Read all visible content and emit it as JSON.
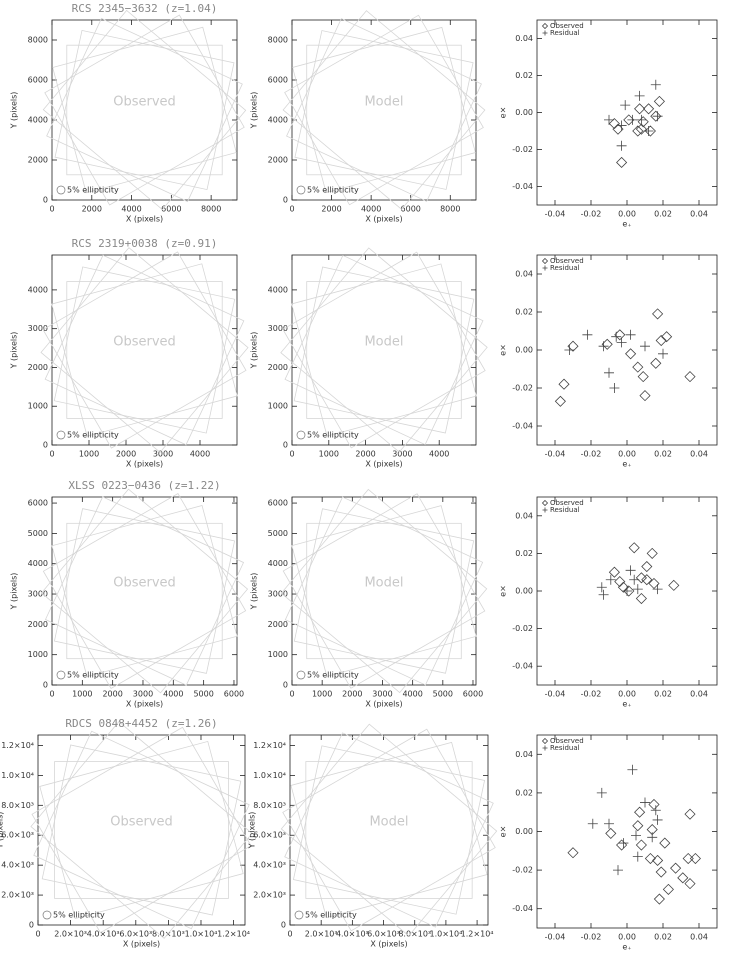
{
  "chart_data": [
    {
      "type": "whisker",
      "title": "RCS 2345−3632 (z=1.04)",
      "annotation": "Observed",
      "legend_label": "5% ellipticity",
      "x_label": "X (pixels)",
      "y_label": "Y (pixels)",
      "xlim": [
        0,
        9300
      ],
      "ylim": [
        0,
        9000
      ],
      "xticks": [
        0,
        2000,
        4000,
        6000,
        8000
      ],
      "yticks": [
        0,
        2000,
        4000,
        6000,
        8000
      ]
    },
    {
      "type": "whisker",
      "annotation": "Model",
      "legend_label": "5% ellipticity",
      "x_label": "X (pixels)",
      "y_label": "Y (pixels)",
      "xlim": [
        0,
        9300
      ],
      "ylim": [
        0,
        9000
      ],
      "xticks": [
        0,
        2000,
        4000,
        6000,
        8000
      ],
      "yticks": [
        0,
        2000,
        4000,
        6000,
        8000
      ]
    },
    {
      "type": "scatter",
      "x_label": "e₊",
      "y_label": "e×",
      "legend": "upper left",
      "xlim": [
        -0.05,
        0.05
      ],
      "ylim": [
        -0.05,
        0.05
      ],
      "xticks": [
        -0.04,
        -0.02,
        {
          "value": 0,
          "label": "0.00"
        },
        0.02,
        0.04
      ],
      "yticks": [
        -0.04,
        -0.02,
        {
          "value": 0,
          "label": "0.00"
        },
        0.02,
        0.04
      ],
      "series": [
        {
          "name": "Observed",
          "marker": "diamond",
          "x": [
            -0.007,
            -0.005,
            -0.003,
            0.001,
            0.006,
            0.008,
            0.009,
            0.013,
            0.016,
            0.018,
            0.007,
            0.012
          ],
          "values": [
            -0.006,
            -0.009,
            -0.027,
            -0.004,
            -0.01,
            -0.009,
            -0.005,
            -0.01,
            -0.002,
            0.006,
            0.002,
            0.002
          ]
        },
        {
          "name": "Residual",
          "marker": "cross",
          "x": [
            -0.01,
            -0.003,
            -0.001,
            0.003,
            0.007,
            0.008,
            -0.003,
            0.016,
            0.017,
            0.012
          ],
          "values": [
            -0.004,
            -0.007,
            0.004,
            -0.004,
            0.009,
            -0.004,
            -0.018,
            0.015,
            -0.002,
            -0.01
          ]
        }
      ]
    },
    {
      "type": "whisker",
      "title": "RCS 2319+0038 (z=0.91)",
      "annotation": "Observed",
      "legend_label": "5% ellipticity",
      "x_label": "X (pixels)",
      "y_label": "Y (pixels)",
      "xlim": [
        0,
        5000
      ],
      "ylim": [
        0,
        4900
      ],
      "xticks": [
        0,
        1000,
        2000,
        3000,
        4000
      ],
      "yticks": [
        0,
        1000,
        2000,
        3000,
        4000
      ]
    },
    {
      "type": "whisker",
      "annotation": "Model",
      "legend_label": "5% ellipticity",
      "x_label": "X (pixels)",
      "y_label": "Y (pixels)",
      "xlim": [
        0,
        5000
      ],
      "ylim": [
        0,
        4900
      ],
      "xticks": [
        0,
        1000,
        2000,
        3000,
        4000
      ],
      "yticks": [
        0,
        1000,
        2000,
        3000,
        4000
      ]
    },
    {
      "type": "scatter",
      "x_label": "e₊",
      "y_label": "e×",
      "legend": "upper left",
      "xlim": [
        -0.05,
        0.05
      ],
      "ylim": [
        -0.05,
        0.05
      ],
      "xticks": [
        -0.04,
        -0.02,
        {
          "value": 0,
          "label": "0.00"
        },
        0.02,
        0.04
      ],
      "yticks": [
        -0.04,
        -0.02,
        {
          "value": 0,
          "label": "0.00"
        },
        0.02,
        0.04
      ],
      "series": [
        {
          "name": "Observed",
          "marker": "diamond",
          "x": [
            -0.03,
            -0.035,
            -0.037,
            -0.011,
            -0.004,
            0.002,
            0.006,
            0.009,
            0.01,
            0.017,
            0.019,
            0.022,
            0.016,
            0.035
          ],
          "values": [
            0.002,
            -0.018,
            -0.027,
            0.003,
            0.008,
            -0.002,
            -0.009,
            -0.014,
            -0.024,
            0.019,
            0.005,
            0.007,
            -0.007,
            -0.014
          ]
        },
        {
          "name": "Residual",
          "marker": "cross",
          "x": [
            -0.032,
            -0.022,
            -0.013,
            -0.01,
            -0.007,
            -0.006,
            -0.003,
            0.01,
            0.02,
            0.002
          ],
          "values": [
            0,
            0.008,
            0.002,
            -0.012,
            -0.02,
            0.007,
            0.004,
            0.002,
            -0.002,
            0.008
          ]
        }
      ]
    },
    {
      "type": "whisker",
      "title": "XLSS 0223−0436 (z=1.22)",
      "annotation": "Observed",
      "legend_label": "5% ellipticity",
      "x_label": "X (pixels)",
      "y_label": "Y (pixels)",
      "xlim": [
        0,
        6100
      ],
      "ylim": [
        0,
        6200
      ],
      "xticks": [
        0,
        1000,
        2000,
        3000,
        4000,
        5000,
        6000
      ],
      "yticks": [
        0,
        1000,
        2000,
        3000,
        4000,
        5000,
        6000
      ]
    },
    {
      "type": "whisker",
      "annotation": "Model",
      "legend_label": "5% ellipticity",
      "x_label": "X (pixels)",
      "y_label": "Y (pixels)",
      "xlim": [
        0,
        6100
      ],
      "ylim": [
        0,
        6200
      ],
      "xticks": [
        0,
        1000,
        2000,
        3000,
        4000,
        5000,
        6000
      ],
      "yticks": [
        0,
        1000,
        2000,
        3000,
        4000,
        5000,
        6000
      ]
    },
    {
      "type": "scatter",
      "x_label": "e₊",
      "y_label": "e×",
      "legend": "upper left",
      "xlim": [
        -0.05,
        0.05
      ],
      "ylim": [
        -0.05,
        0.05
      ],
      "xticks": [
        -0.04,
        -0.02,
        {
          "value": 0,
          "label": "0.00"
        },
        0.02,
        0.04
      ],
      "yticks": [
        -0.04,
        -0.02,
        {
          "value": 0,
          "label": "0.00"
        },
        0.02,
        0.04
      ],
      "series": [
        {
          "name": "Observed",
          "marker": "diamond",
          "x": [
            -0.007,
            -0.002,
            0.004,
            0.011,
            0.014,
            0.015,
            0.008,
            0.011,
            0.008,
            0.026,
            0.001,
            -0.004
          ],
          "values": [
            0.01,
            0.002,
            0.023,
            0.013,
            0.02,
            0.004,
            0.007,
            0.006,
            -0.004,
            0.003,
            0,
            0.005
          ]
        },
        {
          "name": "Residual",
          "marker": "cross",
          "x": [
            -0.014,
            -0.013,
            -0.009,
            0.002,
            0.004,
            0.006,
            0.017,
            0
          ],
          "values": [
            0.002,
            -0.002,
            0.006,
            0.011,
            0.006,
            0.001,
            0.001,
            0
          ]
        }
      ]
    },
    {
      "type": "whisker",
      "title": "RDCS 0848+4452 (z=1.26)",
      "annotation": "Observed",
      "legend_label": "5% ellipticity",
      "x_label": "X (pixels)",
      "y_label": "Y (pixels)",
      "xlim": [
        0,
        12700
      ],
      "ylim": [
        0,
        12700
      ],
      "xticks": [
        {
          "value": 0,
          "label": "0"
        },
        {
          "value": 2000,
          "label": "2.0×10³"
        },
        {
          "value": 4000,
          "label": "4.0×10³"
        },
        {
          "value": 6000,
          "label": "6.0×10³"
        },
        {
          "value": 8000,
          "label": "8.0×10³"
        },
        {
          "value": 10000,
          "label": "1.0×10⁴"
        },
        {
          "value": 12000,
          "label": "1.2×10⁴"
        }
      ],
      "yticks": [
        {
          "value": 0,
          "label": "0"
        },
        {
          "value": 2000,
          "label": "2.0×10³"
        },
        {
          "value": 4000,
          "label": "4.0×10³"
        },
        {
          "value": 6000,
          "label": "6.0×10³"
        },
        {
          "value": 8000,
          "label": "8.0×10³"
        },
        {
          "value": 10000,
          "label": "1.0×10⁴"
        },
        {
          "value": 12000,
          "label": "1.2×10⁴"
        }
      ]
    },
    {
      "type": "whisker",
      "annotation": "Model",
      "legend_label": "5% ellipticity",
      "x_label": "X (pixels)",
      "y_label": "Y (pixels)",
      "xlim": [
        0,
        12700
      ],
      "ylim": [
        0,
        12700
      ],
      "xticks": [
        {
          "value": 0,
          "label": "0"
        },
        {
          "value": 2000,
          "label": "2.0×10³"
        },
        {
          "value": 4000,
          "label": "4.0×10³"
        },
        {
          "value": 6000,
          "label": "6.0×10³"
        },
        {
          "value": 8000,
          "label": "8.0×10³"
        },
        {
          "value": 10000,
          "label": "1.0×10⁴"
        },
        {
          "value": 12000,
          "label": "1.2×10⁴"
        }
      ],
      "yticks": [
        {
          "value": 0,
          "label": "0"
        },
        {
          "value": 2000,
          "label": "2.0×10³"
        },
        {
          "value": 4000,
          "label": "4.0×10³"
        },
        {
          "value": 6000,
          "label": "6.0×10³"
        },
        {
          "value": 8000,
          "label": "8.0×10³"
        },
        {
          "value": 10000,
          "label": "1.0×10⁴"
        },
        {
          "value": 12000,
          "label": "1.2×10⁴"
        }
      ]
    },
    {
      "type": "scatter",
      "x_label": "e₊",
      "y_label": "e×",
      "legend": "upper left",
      "xlim": [
        -0.05,
        0.05
      ],
      "ylim": [
        -0.05,
        0.05
      ],
      "xticks": [
        -0.04,
        -0.02,
        {
          "value": 0,
          "label": "0.00"
        },
        0.02,
        0.04
      ],
      "yticks": [
        -0.04,
        -0.02,
        {
          "value": 0,
          "label": "0.00"
        },
        0.02,
        0.04
      ],
      "series": [
        {
          "name": "Observed",
          "marker": "diamond",
          "x": [
            -0.03,
            -0.009,
            -0.003,
            0.006,
            0.008,
            0.014,
            0.013,
            0.017,
            0.019,
            0.021,
            0.023,
            0.027,
            0.031,
            0.034,
            0.035,
            0.038,
            0.035,
            0.018,
            0.007,
            0.015
          ],
          "values": [
            -0.011,
            -0.001,
            -0.007,
            0.003,
            -0.007,
            0.001,
            -0.014,
            -0.015,
            -0.021,
            -0.006,
            -0.03,
            -0.019,
            -0.024,
            -0.014,
            -0.027,
            -0.014,
            0.009,
            -0.035,
            0.01,
            0.014
          ]
        },
        {
          "name": "Residual",
          "marker": "cross",
          "x": [
            -0.014,
            -0.019,
            -0.01,
            -0.005,
            0.003,
            0.005,
            0.006,
            0.01,
            0.014,
            0.017,
            0.016,
            -0.002
          ],
          "values": [
            0.02,
            0.004,
            0.004,
            -0.02,
            0.032,
            -0.002,
            -0.013,
            0.015,
            -0.003,
            0.006,
            0.011,
            -0.006
          ]
        }
      ]
    }
  ]
}
